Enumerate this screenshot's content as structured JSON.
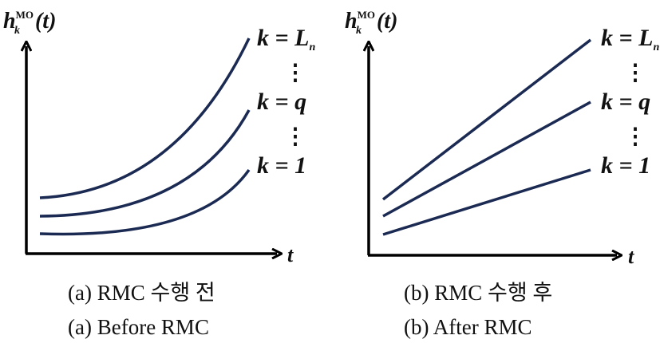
{
  "colors": {
    "axis": "#000000",
    "curve": "#1b2a52",
    "text": "#111111"
  },
  "panels": [
    {
      "id": "a",
      "y_label": {
        "base": "h",
        "sup": "MO",
        "sub": "k",
        "arg": "(t)"
      },
      "x_label": "t",
      "curve_labels": [
        {
          "lhs": "k = ",
          "rhs": "L",
          "rhs_sub": "n"
        },
        {
          "lhs": "k = ",
          "rhs": "q",
          "rhs_sub": ""
        },
        {
          "lhs": "k = ",
          "rhs": "1",
          "rhs_sub": ""
        }
      ],
      "ellipsis": "⋮",
      "caption_ko": "(a) RMC 수행 전",
      "caption_en": "(a) Before RMC",
      "curve_shape": "convex"
    },
    {
      "id": "b",
      "y_label": {
        "base": "h",
        "sup": "MO",
        "sub": "k",
        "arg": "(t)"
      },
      "x_label": "t",
      "curve_labels": [
        {
          "lhs": "k = ",
          "rhs": "L",
          "rhs_sub": "n"
        },
        {
          "lhs": "k = ",
          "rhs": "q",
          "rhs_sub": ""
        },
        {
          "lhs": "k = ",
          "rhs": "1",
          "rhs_sub": ""
        }
      ],
      "ellipsis": "⋮",
      "caption_ko": "(b) RMC 수행 후",
      "caption_en": "(b) After RMC",
      "curve_shape": "linear"
    }
  ]
}
